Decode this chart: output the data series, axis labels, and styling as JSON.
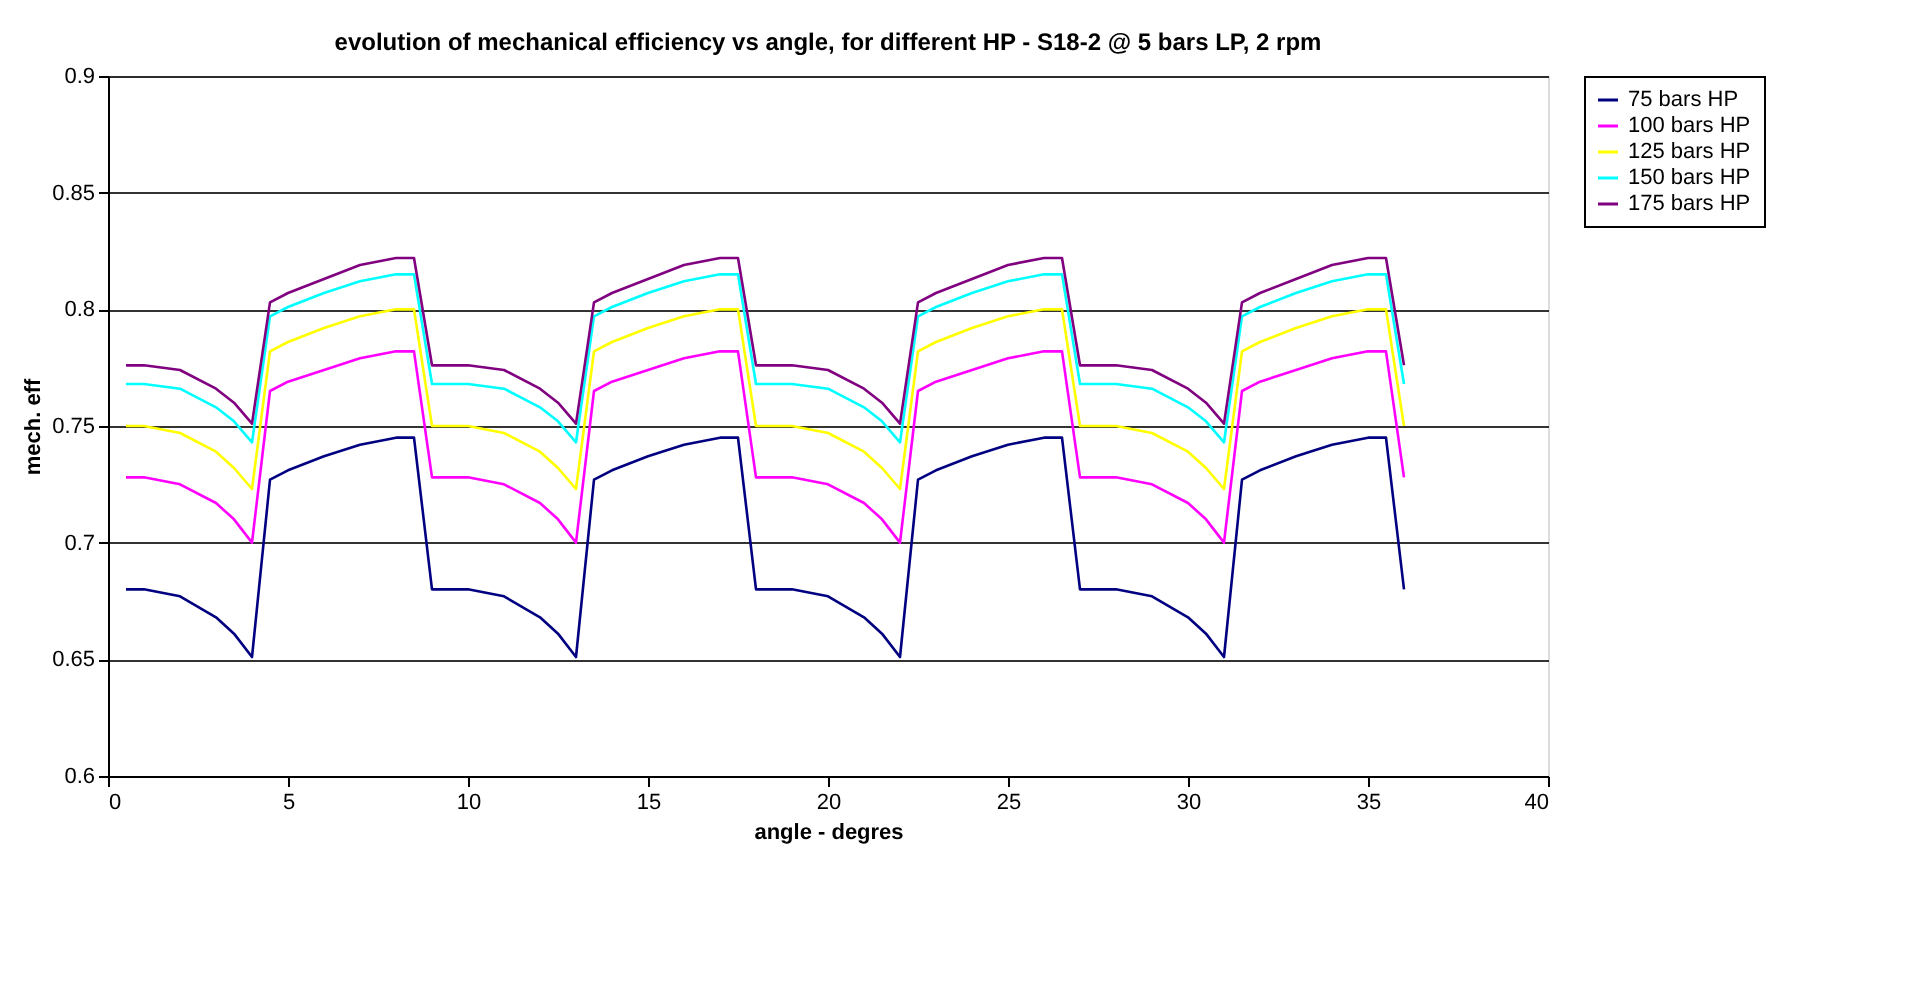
{
  "chart_data": {
    "type": "line",
    "title": "evolution of mechanical efficiency vs angle, for different HP - S18-2 @ 5 bars LP, 2 rpm",
    "xlabel": "angle - degres",
    "ylabel": "mech. eff",
    "x": [
      0.5,
      1,
      2,
      3,
      3.5,
      4,
      4.5,
      5,
      6,
      7,
      8,
      8.5,
      9,
      10,
      11,
      12,
      12.5,
      13,
      13.5,
      14,
      15,
      16,
      17,
      17.5,
      18,
      19,
      20,
      21,
      21.5,
      22,
      22.5,
      23,
      24,
      25,
      26,
      26.5,
      27,
      28,
      29,
      30,
      30.5,
      31,
      31.5,
      32,
      33,
      34,
      35,
      35.5,
      36
    ],
    "series": [
      {
        "name": "75 bars HP",
        "color": "#000080",
        "values": [
          0.68,
          0.68,
          0.677,
          0.668,
          0.661,
          0.651,
          0.727,
          0.731,
          0.737,
          0.742,
          0.745,
          0.745,
          0.68,
          0.68,
          0.677,
          0.668,
          0.661,
          0.651,
          0.727,
          0.731,
          0.737,
          0.742,
          0.745,
          0.745,
          0.68,
          0.68,
          0.677,
          0.668,
          0.661,
          0.651,
          0.727,
          0.731,
          0.737,
          0.742,
          0.745,
          0.745,
          0.68,
          0.68,
          0.677,
          0.668,
          0.661,
          0.651,
          0.727,
          0.731,
          0.737,
          0.742,
          0.745,
          0.745,
          0.68
        ]
      },
      {
        "name": "100 bars HP",
        "color": "#ff00ff",
        "values": [
          0.728,
          0.728,
          0.725,
          0.717,
          0.71,
          0.7,
          0.765,
          0.769,
          0.774,
          0.779,
          0.782,
          0.782,
          0.728,
          0.728,
          0.725,
          0.717,
          0.71,
          0.7,
          0.765,
          0.769,
          0.774,
          0.779,
          0.782,
          0.782,
          0.728,
          0.728,
          0.725,
          0.717,
          0.71,
          0.7,
          0.765,
          0.769,
          0.774,
          0.779,
          0.782,
          0.782,
          0.728,
          0.728,
          0.725,
          0.717,
          0.71,
          0.7,
          0.765,
          0.769,
          0.774,
          0.779,
          0.782,
          0.782,
          0.728
        ]
      },
      {
        "name": "125 bars HP",
        "color": "#ffff00",
        "values": [
          0.75,
          0.75,
          0.747,
          0.739,
          0.732,
          0.723,
          0.782,
          0.786,
          0.792,
          0.797,
          0.8,
          0.8,
          0.75,
          0.75,
          0.747,
          0.739,
          0.732,
          0.723,
          0.782,
          0.786,
          0.792,
          0.797,
          0.8,
          0.8,
          0.75,
          0.75,
          0.747,
          0.739,
          0.732,
          0.723,
          0.782,
          0.786,
          0.792,
          0.797,
          0.8,
          0.8,
          0.75,
          0.75,
          0.747,
          0.739,
          0.732,
          0.723,
          0.782,
          0.786,
          0.792,
          0.797,
          0.8,
          0.8,
          0.75
        ]
      },
      {
        "name": "150 bars HP",
        "color": "#00ffff",
        "values": [
          0.768,
          0.768,
          0.766,
          0.758,
          0.752,
          0.743,
          0.797,
          0.801,
          0.807,
          0.812,
          0.815,
          0.815,
          0.768,
          0.768,
          0.766,
          0.758,
          0.752,
          0.743,
          0.797,
          0.801,
          0.807,
          0.812,
          0.815,
          0.815,
          0.768,
          0.768,
          0.766,
          0.758,
          0.752,
          0.743,
          0.797,
          0.801,
          0.807,
          0.812,
          0.815,
          0.815,
          0.768,
          0.768,
          0.766,
          0.758,
          0.752,
          0.743,
          0.797,
          0.801,
          0.807,
          0.812,
          0.815,
          0.815,
          0.768
        ]
      },
      {
        "name": "175 bars HP",
        "color": "#800080",
        "values": [
          0.776,
          0.776,
          0.774,
          0.766,
          0.76,
          0.751,
          0.803,
          0.807,
          0.813,
          0.819,
          0.822,
          0.822,
          0.776,
          0.776,
          0.774,
          0.766,
          0.76,
          0.751,
          0.803,
          0.807,
          0.813,
          0.819,
          0.822,
          0.822,
          0.776,
          0.776,
          0.774,
          0.766,
          0.76,
          0.751,
          0.803,
          0.807,
          0.813,
          0.819,
          0.822,
          0.822,
          0.776,
          0.776,
          0.774,
          0.766,
          0.76,
          0.751,
          0.803,
          0.807,
          0.813,
          0.819,
          0.822,
          0.822,
          0.776
        ]
      }
    ],
    "xlim": [
      0,
      40
    ],
    "xticks": [
      0,
      5,
      10,
      15,
      20,
      25,
      30,
      35,
      40
    ],
    "ylim": [
      0.6,
      0.9
    ],
    "yticks": [
      0.6,
      0.65,
      0.7,
      0.75,
      0.8,
      0.85,
      0.9
    ],
    "grid": "y",
    "legend": "right",
    "marker": "none",
    "line_style": "solid"
  }
}
